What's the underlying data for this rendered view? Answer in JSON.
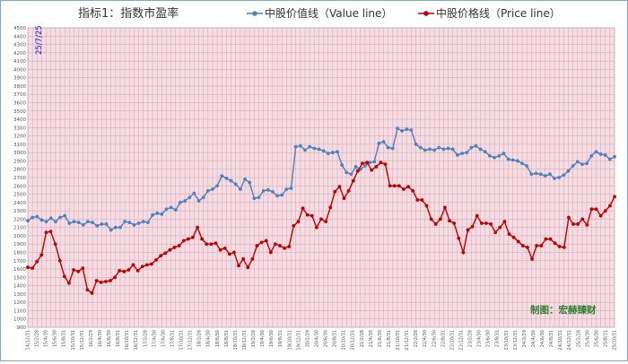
{
  "chart_data": {
    "type": "line",
    "title": "指标1：指数市盈率",
    "date_stamp": "25/7/25",
    "watermark": "制图：宏赫臻财",
    "xlabel": "",
    "ylabel": "",
    "ylim": [
      900,
      4500
    ],
    "y_ticks": [
      900,
      1000,
      1100,
      1200,
      1300,
      1400,
      1500,
      1600,
      1700,
      1800,
      1900,
      2000,
      2100,
      2200,
      2300,
      2400,
      2500,
      2600,
      2700,
      2800,
      2900,
      3000,
      3100,
      3200,
      3300,
      3400,
      3500,
      3600,
      3700,
      3800,
      3900,
      4000,
      4100,
      4200,
      4300,
      4400,
      4500
    ],
    "x_tick_labels": [
      "14/12/31",
      "15/2/28",
      "15/4/30",
      "15/6/30",
      "15/8/31",
      "15/10/31",
      "15/12/31",
      "16/2/29",
      "16/4/30",
      "16/6/30",
      "16/8/31",
      "16/10/31",
      "16/12/31",
      "17/2/28",
      "17/4/30",
      "17/6/30",
      "17/8/31",
      "17/10/31",
      "17/12/31",
      "18/2/28",
      "18/4/30",
      "18/6/30",
      "18/8/31",
      "18/10/31",
      "18/12/31",
      "19/2/28",
      "19/4/30",
      "19/6/30",
      "19/8/31",
      "19/10/31",
      "19/12/31",
      "20/2/29",
      "20/4/30",
      "20/6/30",
      "20/8/31",
      "20/10/31",
      "20/12/31",
      "21/2/28",
      "21/4/30",
      "21/6/30",
      "21/8/31",
      "21/10/31",
      "21/12/31",
      "22/2/28",
      "22/4/30",
      "22/6/30",
      "22/8/31",
      "22/10/31",
      "22/12/31",
      "23/2/28",
      "23/4/30",
      "23/6/30",
      "23/8/31",
      "23/10/31",
      "23/12/31",
      "24/2/29",
      "24/4/30",
      "24/6/30",
      "24/8/31",
      "24/10/31",
      "24/12/31",
      "25/2/28",
      "25/4/30",
      "25/6/30",
      "25/8/31",
      "25/10/31"
    ],
    "grid": true,
    "legend_position": "top",
    "series": [
      {
        "name": "中股价值线（Value line）",
        "color": "#4f81bd",
        "values": [
          2180,
          2220,
          2230,
          2190,
          2170,
          2210,
          2170,
          2220,
          2240,
          2150,
          2170,
          2160,
          2130,
          2170,
          2160,
          2120,
          2140,
          2140,
          2070,
          2100,
          2100,
          2170,
          2160,
          2130,
          2150,
          2170,
          2160,
          2250,
          2270,
          2260,
          2320,
          2340,
          2310,
          2400,
          2420,
          2460,
          2510,
          2420,
          2460,
          2540,
          2560,
          2600,
          2720,
          2690,
          2660,
          2620,
          2560,
          2680,
          2640,
          2450,
          2460,
          2540,
          2550,
          2530,
          2480,
          2490,
          2560,
          2570,
          3070,
          3080,
          3030,
          3070,
          3050,
          3040,
          3020,
          2990,
          3000,
          3010,
          2850,
          2760,
          2740,
          2830,
          2800,
          2840,
          2880,
          2890,
          3110,
          3130,
          3060,
          3050,
          3290,
          3260,
          3280,
          3270,
          3100,
          3060,
          3030,
          3040,
          3030,
          3060,
          3040,
          3050,
          3040,
          2970,
          2990,
          3000,
          3060,
          3080,
          3040,
          3010,
          2960,
          2940,
          2960,
          2990,
          2920,
          2910,
          2900,
          2870,
          2840,
          2740,
          2750,
          2740,
          2720,
          2740,
          2690,
          2700,
          2730,
          2780,
          2840,
          2890,
          2860,
          2870,
          2960,
          3010,
          2980,
          2970,
          2920,
          2950
        ]
      },
      {
        "name": "中股价格线（Price line）",
        "color": "#c00000",
        "values": [
          1620,
          1610,
          1690,
          1770,
          2040,
          2050,
          1900,
          1700,
          1510,
          1430,
          1590,
          1570,
          1610,
          1350,
          1310,
          1460,
          1440,
          1450,
          1460,
          1500,
          1580,
          1570,
          1590,
          1650,
          1580,
          1630,
          1650,
          1660,
          1710,
          1760,
          1790,
          1830,
          1860,
          1880,
          1940,
          1960,
          1980,
          2100,
          1960,
          1900,
          1900,
          1910,
          1830,
          1850,
          1780,
          1800,
          1640,
          1720,
          1620,
          1720,
          1880,
          1920,
          1940,
          1800,
          1900,
          1880,
          1850,
          1870,
          2120,
          2170,
          2330,
          2250,
          2240,
          2100,
          2200,
          2170,
          2340,
          2530,
          2590,
          2450,
          2540,
          2660,
          2780,
          2870,
          2880,
          2790,
          2830,
          2880,
          2860,
          2600,
          2600,
          2600,
          2560,
          2590,
          2540,
          2430,
          2430,
          2360,
          2200,
          2140,
          2200,
          2340,
          2180,
          2150,
          1970,
          1800,
          2070,
          2110,
          2240,
          2150,
          2150,
          2140,
          2040,
          2100,
          2170,
          2020,
          1980,
          1930,
          1880,
          1860,
          1720,
          1880,
          1880,
          1960,
          1960,
          1910,
          1870,
          1860,
          2220,
          2140,
          2140,
          2200,
          2130,
          2320,
          2320,
          2240,
          2300,
          2360,
          2470
        ]
      }
    ]
  }
}
